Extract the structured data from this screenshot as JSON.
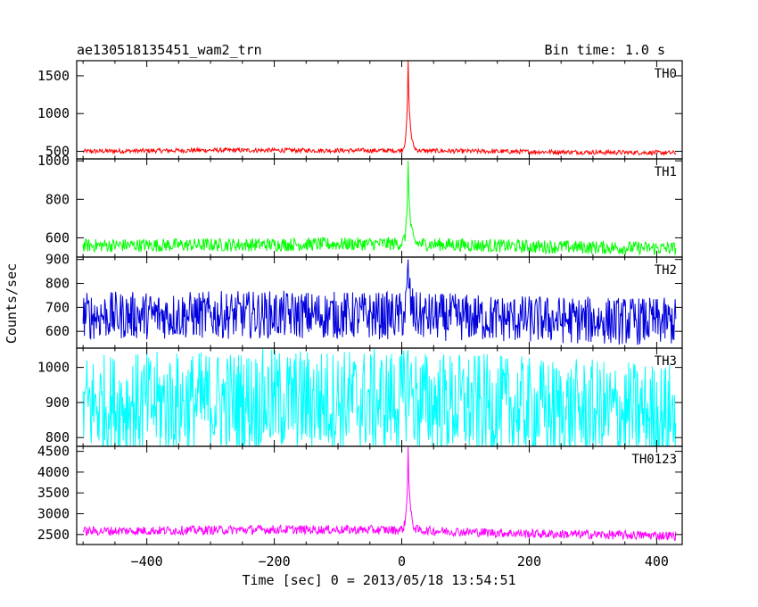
{
  "header": {
    "title": "ae130518135451_wam2_trn",
    "bin_time": "Bin time: 1.0 s"
  },
  "chart_data": {
    "type": "line",
    "xlabel": "Time [sec] 0 = 2013/05/18 13:54:51",
    "ylabel": "Counts/sec",
    "xlim": [
      -510,
      440
    ],
    "xticks": [
      -400,
      -200,
      0,
      200,
      400
    ],
    "x_range_data": [
      -500,
      430
    ],
    "peak_time": 10,
    "panels": [
      {
        "name": "TH0",
        "color": "#ff0000",
        "ylim": [
          400,
          1700
        ],
        "yticks": [
          500,
          1000,
          1500
        ],
        "baseline": [
          [
            -500,
            500
          ],
          [
            -300,
            515
          ],
          [
            0,
            510
          ],
          [
            200,
            495
          ],
          [
            430,
            480
          ]
        ],
        "noise_amplitude": 30,
        "peak_value": 1700
      },
      {
        "name": "TH1",
        "color": "#00ff00",
        "ylim": [
          500,
          1010
        ],
        "yticks": [
          600,
          800,
          1000
        ],
        "baseline": [
          [
            -500,
            560
          ],
          [
            -200,
            565
          ],
          [
            0,
            570
          ],
          [
            200,
            555
          ],
          [
            430,
            545
          ]
        ],
        "noise_amplitude": 35,
        "peak_value": 1000
      },
      {
        "name": "TH2",
        "color": "#0000dd",
        "ylim": [
          530,
          910
        ],
        "yticks": [
          600,
          700,
          800,
          900
        ],
        "baseline": [
          [
            -500,
            665
          ],
          [
            -200,
            670
          ],
          [
            0,
            665
          ],
          [
            200,
            650
          ],
          [
            430,
            640
          ]
        ],
        "noise_amplitude": 100,
        "peak_value": 900
      },
      {
        "name": "TH3",
        "color": "#00ffff",
        "ylim": [
          775,
          1055
        ],
        "yticks": [
          800,
          900,
          1000
        ],
        "baseline": [
          [
            -500,
            890
          ],
          [
            -200,
            905
          ],
          [
            0,
            905
          ],
          [
            200,
            880
          ],
          [
            430,
            865
          ]
        ],
        "noise_amplitude": 150,
        "peak_value": 1050
      },
      {
        "name": "TH0123",
        "color": "#ff00ff",
        "ylim": [
          2260,
          4620
        ],
        "yticks": [
          2500,
          3000,
          3500,
          4000,
          4500
        ],
        "baseline": [
          [
            -500,
            2580
          ],
          [
            -200,
            2620
          ],
          [
            0,
            2610
          ],
          [
            200,
            2520
          ],
          [
            430,
            2470
          ]
        ],
        "noise_amplitude": 110,
        "peak_value": 4600
      }
    ]
  }
}
